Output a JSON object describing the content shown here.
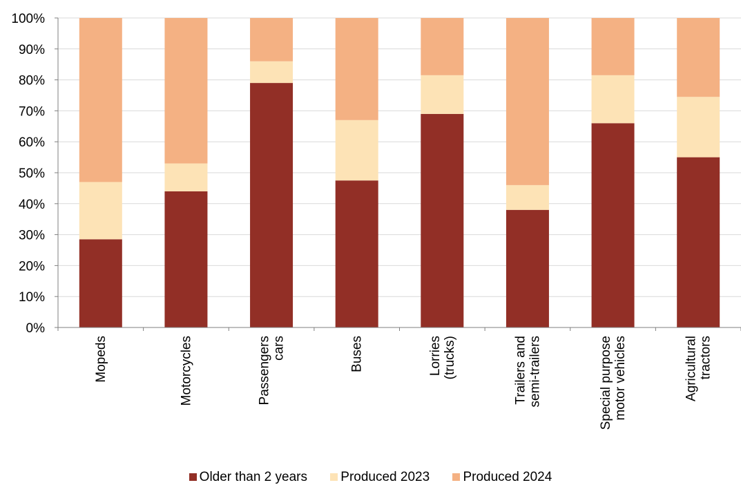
{
  "chart_data": {
    "type": "bar",
    "stacked": true,
    "categories": [
      [
        "Mopeds"
      ],
      [
        "Motorcycles"
      ],
      [
        "Passengers",
        "cars"
      ],
      [
        "Buses"
      ],
      [
        "Lorries",
        "(trucks)"
      ],
      [
        "Trailers and",
        "semi-trailers"
      ],
      [
        "Special purpose",
        "motor vehicles"
      ],
      [
        "Agricultural",
        "tractors"
      ]
    ],
    "series": [
      {
        "name": "Older than 2 years",
        "color": "#922F26",
        "values": [
          28.5,
          44,
          79,
          47.5,
          69,
          38,
          66,
          55
        ]
      },
      {
        "name": "Produced 2023",
        "color": "#FDE3B6",
        "values": [
          18.5,
          9,
          7,
          19.5,
          12.5,
          8,
          15.5,
          19.5
        ]
      },
      {
        "name": "Produced 2024",
        "color": "#F4B183",
        "values": [
          53,
          47,
          14,
          33,
          18.5,
          54,
          18.5,
          25.5
        ]
      }
    ],
    "yticks": [
      "0%",
      "10%",
      "20%",
      "30%",
      "40%",
      "50%",
      "60%",
      "70%",
      "80%",
      "90%",
      "100%"
    ],
    "ylim": [
      0,
      100
    ],
    "grid": true,
    "legend_position": "bottom"
  }
}
